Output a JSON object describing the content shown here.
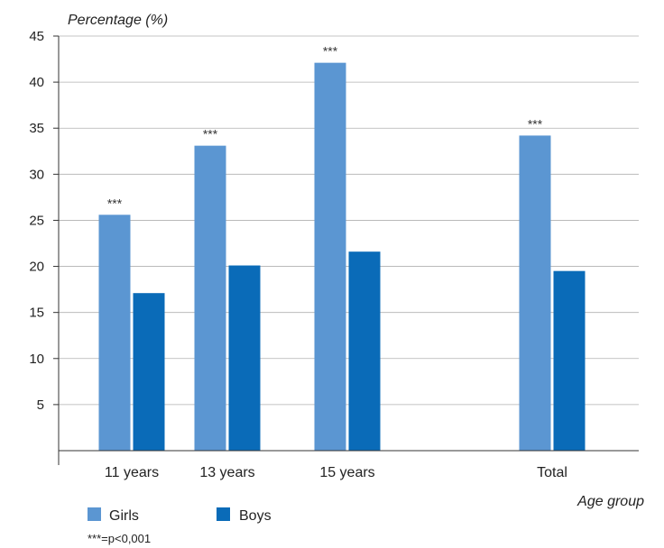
{
  "chart_data": {
    "type": "bar",
    "ylabel": "Percentage (%)",
    "xlabel": "Age group",
    "categories": [
      "11 years",
      "13 years",
      "15 years",
      "Total"
    ],
    "ylim": [
      0,
      45
    ],
    "yticks": [
      5,
      10,
      15,
      20,
      25,
      30,
      35,
      40,
      45
    ],
    "grid": true,
    "legend_position": "bottom-left",
    "series": [
      {
        "name": "Girls",
        "values": [
          25.6,
          33.1,
          42.1,
          34.2
        ],
        "color": "#5b96d2"
      },
      {
        "name": "Boys",
        "values": [
          17.1,
          20.1,
          21.6,
          19.5
        ],
        "color": "#0a6bb8"
      }
    ],
    "significance": [
      "***",
      "***",
      "***",
      "***"
    ],
    "note": "***=p<0,001"
  }
}
